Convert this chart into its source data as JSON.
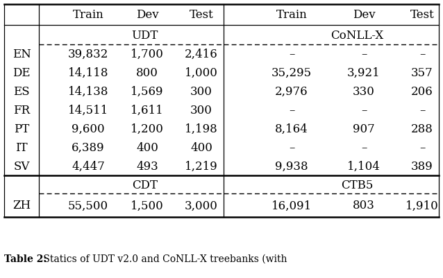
{
  "header_cols": [
    "Train",
    "Dev",
    "Test",
    "Train",
    "Dev",
    "Test"
  ],
  "section_left_top": "UDT",
  "section_right_top": "CoNLL-X",
  "section_left_bot": "CDT",
  "section_right_bot": "CTB5",
  "rows": [
    [
      "EN",
      "39,832",
      "1,700",
      "2,416",
      "–",
      "–",
      "–"
    ],
    [
      "DE",
      "14,118",
      "800",
      "1,000",
      "35,295",
      "3,921",
      "357"
    ],
    [
      "ES",
      "14,138",
      "1,569",
      "300",
      "2,976",
      "330",
      "206"
    ],
    [
      "FR",
      "14,511",
      "1,611",
      "300",
      "–",
      "–",
      "–"
    ],
    [
      "PT",
      "9,600",
      "1,200",
      "1,198",
      "8,164",
      "907",
      "288"
    ],
    [
      "IT",
      "6,389",
      "400",
      "400",
      "–",
      "–",
      "–"
    ],
    [
      "SV",
      "4,447",
      "493",
      "1,219",
      "9,938",
      "1,104",
      "389"
    ]
  ],
  "zh_row": [
    "ZH",
    "55,500",
    "1,500",
    "3,000",
    "16,091",
    "803",
    "1,910"
  ],
  "caption_bold": "Table 2:",
  "caption_normal": " Statics of UDT v2.0 and CoNLL-X treebanks (with",
  "bg_color": "#ffffff",
  "fs_header": 12,
  "fs_data": 12,
  "fs_caption": 10,
  "font_family": "serif"
}
